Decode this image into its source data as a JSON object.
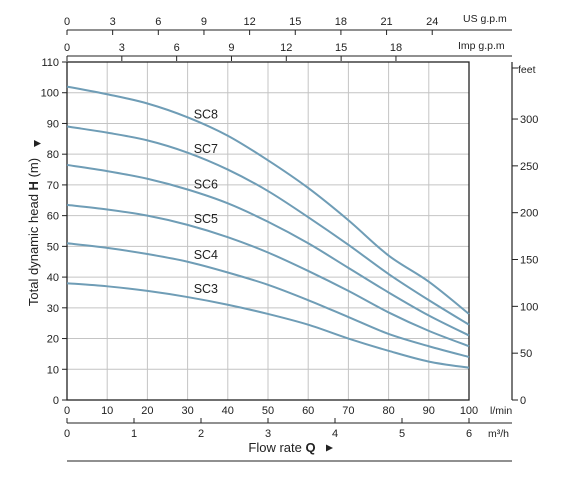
{
  "chart_data": {
    "type": "line",
    "x": [
      0,
      10,
      20,
      30,
      40,
      50,
      60,
      70,
      80,
      90,
      100
    ],
    "xlim": [
      0,
      100
    ],
    "ylim": [
      0,
      110
    ],
    "x_ticks": [
      "0",
      "10",
      "20",
      "30",
      "40",
      "50",
      "60",
      "70",
      "80",
      "90",
      "100"
    ],
    "x_unit": "l/min",
    "y_ticks": [
      "0",
      "10",
      "20",
      "30",
      "40",
      "50",
      "60",
      "70",
      "80",
      "90",
      "100",
      "110"
    ],
    "ylabel_prefix": "Total dynamic head",
    "ylabel_symbol": "H",
    "ylabel_unit": "(m)",
    "xlabel_prefix": "Flow rate",
    "xlabel_symbol": "Q",
    "line_color": "#6f9db6",
    "grid": true,
    "series": [
      {
        "name": "SC8",
        "values": [
          102,
          99.5,
          96.5,
          92,
          86,
          78,
          69,
          58.5,
          47,
          38.5,
          28
        ]
      },
      {
        "name": "SC7",
        "values": [
          89,
          87,
          84.5,
          80.5,
          75,
          68,
          59.5,
          50.5,
          41,
          32.5,
          24.5
        ]
      },
      {
        "name": "SC6",
        "values": [
          76.5,
          74.5,
          72,
          68.5,
          64,
          58,
          51,
          43,
          35,
          27.5,
          21
        ]
      },
      {
        "name": "SC5",
        "values": [
          63.5,
          62,
          60,
          57,
          53,
          48,
          42,
          35.5,
          28.5,
          22.5,
          17.5
        ]
      },
      {
        "name": "SC4",
        "values": [
          51,
          49.5,
          47.5,
          45,
          41.5,
          37.5,
          32.5,
          27,
          21.5,
          17.5,
          14
        ]
      },
      {
        "name": "SC3",
        "values": [
          38,
          37,
          35.5,
          33.5,
          31,
          28,
          24.5,
          20,
          16,
          12.5,
          10.5
        ]
      }
    ],
    "secondary_axes": {
      "us_gpm": {
        "unit": "US g.p.m",
        "max": 26.417,
        "ticks": [
          0,
          3,
          6,
          9,
          12,
          15,
          18,
          21,
          24
        ]
      },
      "imp_gpm": {
        "unit": "Imp g.p.m",
        "max": 21.997,
        "ticks": [
          0,
          3,
          6,
          9,
          12,
          15,
          18
        ]
      },
      "m3h": {
        "unit": "m³/h",
        "max": 6,
        "ticks": [
          0,
          1,
          2,
          3,
          4,
          5,
          6
        ]
      },
      "feet": {
        "unit": "feet",
        "max": 360.89,
        "ticks": [
          0,
          50,
          100,
          150,
          200,
          250,
          300
        ]
      }
    }
  }
}
